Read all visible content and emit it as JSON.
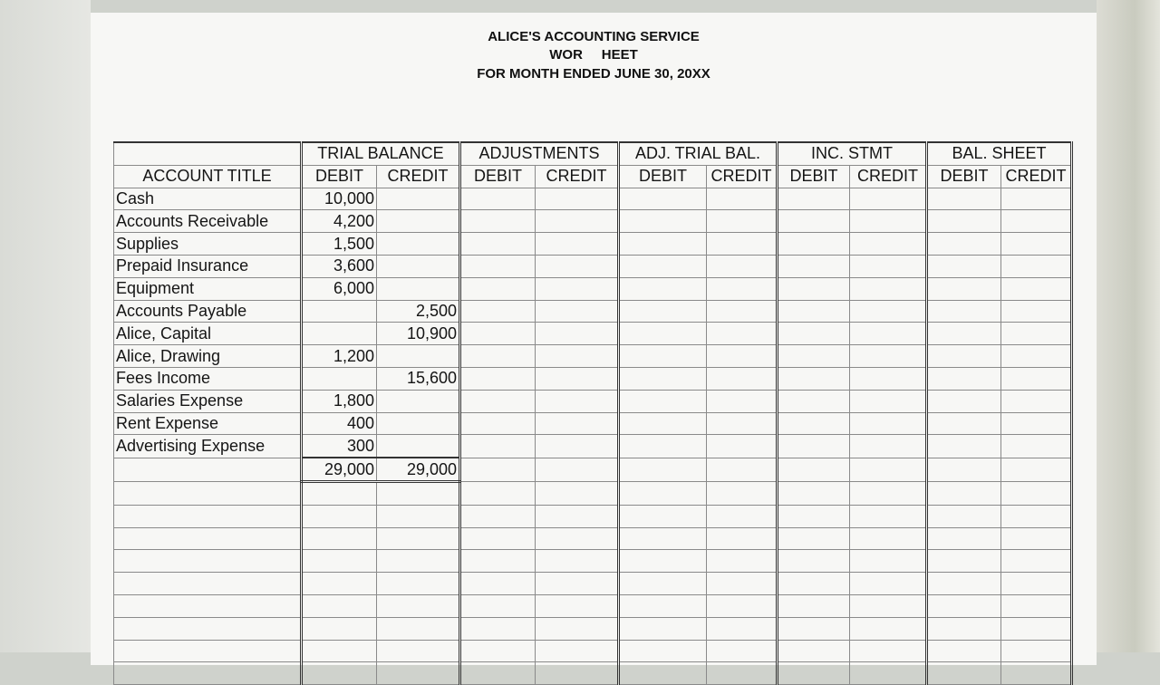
{
  "header": {
    "company": "ALICE'S ACCOUNTING SERVICE",
    "title": "WOR     HEET",
    "period": "FOR MONTH ENDED JUNE 30, 20XX"
  },
  "columns": {
    "account_title": "ACCOUNT TITLE",
    "groups": [
      "TRIAL BALANCE",
      "ADJUSTMENTS",
      "ADJ. TRIAL BAL.",
      "INC. STMT",
      "BAL. SHEET"
    ],
    "debit": "DEBIT",
    "credit": "CREDIT"
  },
  "rows": [
    {
      "account": "Cash",
      "debit": "10,000",
      "credit": ""
    },
    {
      "account": "Accounts Receivable",
      "debit": "4,200",
      "credit": ""
    },
    {
      "account": "Supplies",
      "debit": "1,500",
      "credit": ""
    },
    {
      "account": "Prepaid Insurance",
      "debit": "3,600",
      "credit": ""
    },
    {
      "account": "Equipment",
      "debit": "6,000",
      "credit": ""
    },
    {
      "account": "Accounts Payable",
      "debit": "",
      "credit": "2,500"
    },
    {
      "account": "Alice, Capital",
      "debit": "",
      "credit": "10,900"
    },
    {
      "account": "Alice, Drawing",
      "debit": "1,200",
      "credit": ""
    },
    {
      "account": "Fees Income",
      "debit": "",
      "credit": "15,600"
    },
    {
      "account": "Salaries Expense",
      "debit": "1,800",
      "credit": ""
    },
    {
      "account": "Rent Expense",
      "debit": "400",
      "credit": ""
    },
    {
      "account": "Advertising Expense",
      "debit": "300",
      "credit": ""
    }
  ],
  "totals": {
    "debit": "29,000",
    "credit": "29,000"
  }
}
